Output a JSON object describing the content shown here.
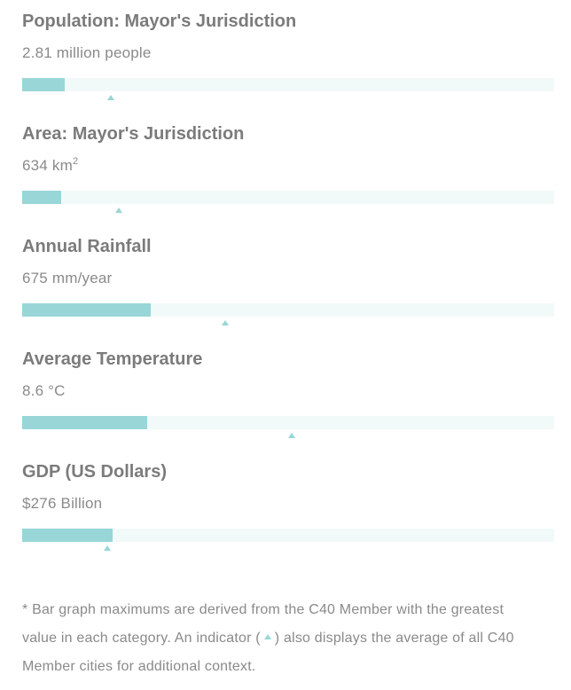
{
  "colors": {
    "bar_fill": "#99d6d8",
    "bar_track": "#f2f9f9",
    "average_marker": "#99d6d8",
    "title_text": "#7b7b7b",
    "body_text": "#8a8a8a"
  },
  "stats": [
    {
      "title": "Population: Mayor's Jurisdiction",
      "value_main": "2.81 million people",
      "value_sup": "",
      "bar_fraction": 0.08,
      "average_fraction": 0.167
    },
    {
      "title": "Area: Mayor's Jurisdiction",
      "value_main": "634 km",
      "value_sup": "2",
      "bar_fraction": 0.073,
      "average_fraction": 0.182
    },
    {
      "title": "Annual Rainfall",
      "value_main": "675 mm/year",
      "value_sup": "",
      "bar_fraction": 0.242,
      "average_fraction": 0.382
    },
    {
      "title": "Average Temperature",
      "value_main": "8.6 °C",
      "value_sup": "",
      "bar_fraction": 0.235,
      "average_fraction": 0.507
    },
    {
      "title": "GDP (US Dollars)",
      "value_main": "$276 Billion",
      "value_sup": "",
      "bar_fraction": 0.17,
      "average_fraction": 0.16
    }
  ],
  "footnote": {
    "before_icon": "* Bar graph maximums are derived from the C40 Member with the greatest value in each category. An indicator (",
    "icon": "triangle-up-icon",
    "after_icon": ") also displays the average of all C40 Member cities for additional context."
  }
}
